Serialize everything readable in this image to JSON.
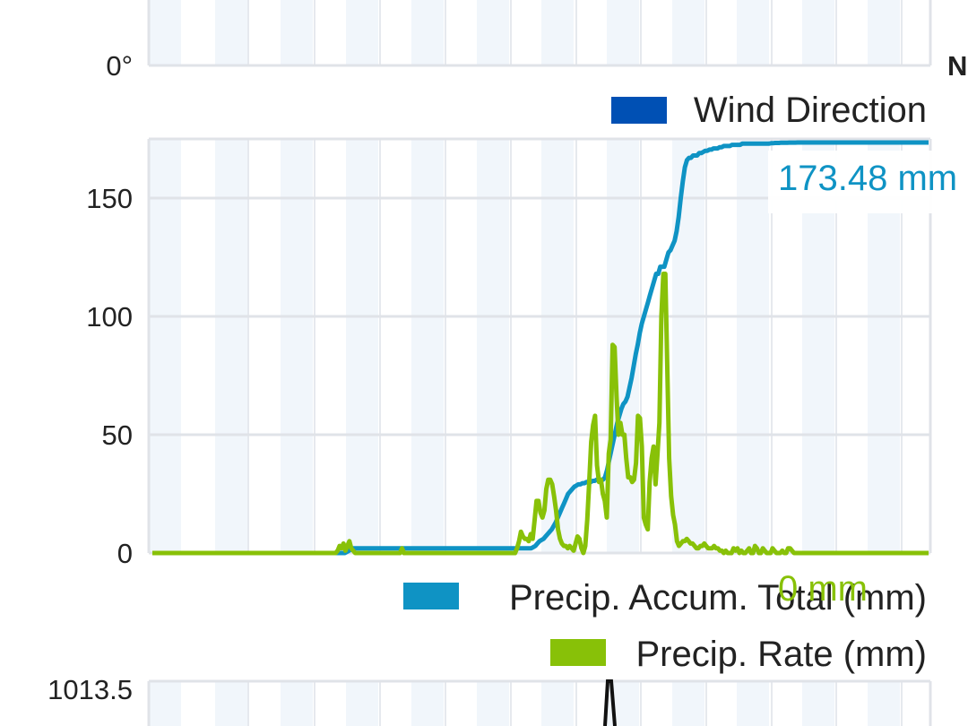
{
  "top_panel": {
    "y_tick_label": "0°",
    "right_edge_label": "N",
    "legend": {
      "label": "Wind Direction",
      "color": "#0050b4"
    }
  },
  "chart_data": {
    "type": "line",
    "ylim": [
      0,
      175
    ],
    "yticks": [
      0,
      50,
      100,
      150
    ],
    "grid": true,
    "legend_position": "bottom-right",
    "series": [
      {
        "name": "Precip. Accum. Total (mm)",
        "color": "#0f93c4",
        "current_label": "173.48 mm",
        "values": [
          0,
          0,
          0,
          0,
          0,
          0,
          0,
          0,
          0,
          0,
          0,
          0,
          0,
          0,
          0,
          0,
          0,
          0,
          0,
          0,
          0,
          0,
          0,
          0,
          0,
          0,
          0,
          0,
          0,
          0,
          0,
          0,
          0,
          0,
          0,
          0,
          0,
          0,
          0,
          0,
          0,
          0,
          0,
          0,
          0,
          0,
          0,
          0,
          0,
          0,
          0,
          0,
          0,
          0,
          0,
          0,
          0,
          0,
          0,
          0,
          0,
          0,
          0,
          0,
          0,
          0,
          0,
          0,
          0,
          0,
          0,
          0,
          0,
          0,
          0,
          0,
          0,
          0,
          0,
          0,
          0,
          0,
          0,
          0,
          0,
          0,
          0,
          0,
          0,
          0,
          0,
          0,
          0,
          0,
          0,
          0.5,
          1,
          1.5,
          2,
          2,
          2,
          2,
          2,
          2,
          2,
          2,
          2,
          2,
          2,
          2,
          2,
          2,
          2,
          2,
          2,
          2,
          2,
          2,
          2,
          2,
          2,
          2,
          2,
          2,
          2,
          2,
          2,
          2,
          2,
          2,
          2,
          2,
          2,
          2,
          2,
          2,
          2,
          2,
          2,
          2,
          2,
          2,
          2,
          2,
          2,
          2,
          2,
          2,
          2,
          2,
          2,
          2,
          2,
          2,
          2,
          2,
          2,
          2,
          2,
          2,
          2,
          2,
          2,
          2,
          2,
          2,
          2,
          2,
          2,
          2,
          2,
          2,
          2,
          2,
          2,
          2,
          2,
          2,
          2,
          2,
          2,
          2,
          2,
          2,
          2,
          2,
          2.5,
          3,
          4,
          5,
          5.5,
          6,
          7,
          8,
          9,
          10,
          11.5,
          13,
          15,
          17,
          19,
          21,
          23,
          25,
          26,
          27,
          28,
          28.5,
          29,
          29,
          29.5,
          29.5,
          30,
          30,
          30,
          30.5,
          30.5,
          31,
          31,
          31,
          31,
          32,
          35,
          39,
          43,
          47,
          51,
          55,
          58,
          61,
          63,
          64,
          66,
          70,
          74,
          79,
          84,
          88,
          93,
          97,
          100,
          103,
          106,
          109,
          112,
          115,
          118,
          118,
          121,
          121,
          121,
          124,
          127,
          128,
          130,
          132,
          136,
          142,
          150,
          157,
          163,
          166,
          167,
          167,
          168,
          168,
          168,
          169,
          169,
          169.5,
          170,
          170,
          170.5,
          170.5,
          171,
          171,
          171,
          171.5,
          171.5,
          172,
          172,
          172,
          172,
          172.5,
          172.5,
          172.5,
          172.5,
          172.5,
          173,
          173,
          173,
          173,
          173,
          173,
          173,
          173,
          173,
          173,
          173,
          173,
          173,
          173,
          173.2,
          173.2,
          173.3,
          173.3,
          173.3,
          173.4,
          173.4,
          173.4,
          173.4,
          173.45,
          173.45,
          173.45,
          173.45,
          173.48,
          173.48,
          173.48,
          173.48,
          173.48,
          173.48,
          173.48,
          173.48,
          173.48,
          173.48,
          173.48,
          173.48,
          173.48,
          173.48,
          173.48,
          173.48,
          173.48,
          173.48,
          173.48,
          173.48,
          173.48,
          173.48,
          173.48,
          173.48,
          173.48,
          173.48,
          173.48,
          173.48,
          173.48,
          173.48,
          173.48,
          173.48,
          173.48,
          173.48,
          173.48,
          173.48,
          173.48,
          173.48,
          173.48,
          173.48,
          173.48,
          173.48,
          173.48,
          173.48,
          173.48,
          173.48,
          173.48,
          173.48,
          173.48,
          173.48,
          173.48,
          173.48,
          173.48,
          173.48,
          173.48,
          173.48,
          173.48,
          173.48,
          173.48,
          173.48,
          173.48,
          173.48,
          173.48,
          173.48,
          173.48
        ]
      },
      {
        "name": "Precip. Rate (mm)",
        "color": "#88c108",
        "current_label": "0 mm",
        "values": [
          0,
          0,
          0,
          0,
          0,
          0,
          0,
          0,
          0,
          0,
          0,
          0,
          0,
          0,
          0,
          0,
          0,
          0,
          0,
          0,
          0,
          0,
          0,
          0,
          0,
          0,
          0,
          0,
          0,
          0,
          0,
          0,
          0,
          0,
          0,
          0,
          0,
          0,
          0,
          0,
          0,
          0,
          0,
          0,
          0,
          0,
          0,
          0,
          0,
          0,
          0,
          0,
          0,
          0,
          0,
          0,
          0,
          0,
          0,
          0,
          0,
          0,
          0,
          0,
          0,
          0,
          0,
          0,
          0,
          0,
          0,
          0,
          0,
          0,
          0,
          0,
          0,
          0,
          0,
          0,
          0,
          0,
          0,
          0,
          0,
          0,
          0,
          0,
          0,
          0,
          0,
          0,
          0,
          0,
          0,
          1,
          3,
          2,
          4,
          1,
          3,
          5,
          2,
          1,
          0,
          0,
          0,
          0,
          0,
          0,
          0,
          0,
          0,
          0,
          0,
          0,
          0,
          0,
          0,
          0,
          0,
          0,
          0,
          0,
          0,
          0,
          0,
          0,
          2,
          0,
          0,
          0,
          0,
          0,
          0,
          0,
          0,
          0,
          0,
          0,
          0,
          0,
          0,
          0,
          0,
          0,
          0,
          0,
          0,
          0,
          0,
          0,
          0,
          0,
          0,
          0,
          0,
          0,
          0,
          0,
          0,
          0,
          0,
          0,
          0,
          0,
          0,
          0,
          0,
          0,
          0,
          0,
          0,
          0,
          0,
          0,
          0,
          0,
          0,
          0,
          0,
          0,
          0,
          0,
          0,
          0,
          0,
          2,
          5,
          9,
          7,
          6,
          6,
          5,
          8,
          6,
          14,
          22,
          22,
          17,
          15,
          18,
          27,
          31,
          31,
          29,
          24,
          18,
          10,
          6,
          4,
          3,
          3,
          2,
          3,
          2,
          1,
          4,
          7,
          6,
          2,
          0,
          3,
          14,
          30,
          47,
          54,
          58,
          37,
          30,
          31,
          25,
          22,
          15,
          42,
          48,
          88,
          87,
          66,
          50,
          55,
          50,
          50,
          40,
          32,
          32,
          30,
          31,
          38,
          58,
          57,
          45,
          15,
          12,
          10,
          30,
          40,
          45,
          29,
          42,
          55,
          100,
          118,
          118,
          80,
          40,
          24,
          16,
          12,
          5,
          3,
          4,
          5,
          5,
          6,
          5,
          4,
          4,
          3,
          2,
          2,
          3,
          3,
          4,
          3,
          2,
          2,
          2,
          3,
          2,
          2,
          1,
          1,
          0,
          1,
          0,
          0,
          0,
          2,
          1,
          2,
          0,
          1,
          0,
          0,
          1,
          2,
          0,
          0,
          3,
          2,
          0,
          0,
          2,
          1,
          0,
          0,
          0,
          2,
          1,
          0,
          0,
          0,
          1,
          0,
          0,
          2,
          2,
          1,
          0,
          0,
          0,
          0,
          0,
          0,
          0,
          0,
          0,
          0,
          0,
          0,
          0,
          0,
          0,
          0,
          0,
          0,
          0,
          0,
          0,
          0,
          0,
          0,
          0,
          0,
          0,
          0,
          0,
          0,
          0,
          0,
          0,
          0,
          0,
          0,
          0,
          0,
          0,
          0,
          0,
          0,
          0,
          0,
          0,
          0,
          0,
          0,
          0,
          0,
          0,
          0,
          0,
          0,
          0,
          0,
          0,
          0,
          0,
          0,
          0,
          0,
          0,
          0,
          0,
          0,
          0,
          0,
          0,
          0
        ]
      }
    ]
  },
  "bottom_panel": {
    "y_tick_label": "1013.5",
    "line_color": "#111111"
  }
}
